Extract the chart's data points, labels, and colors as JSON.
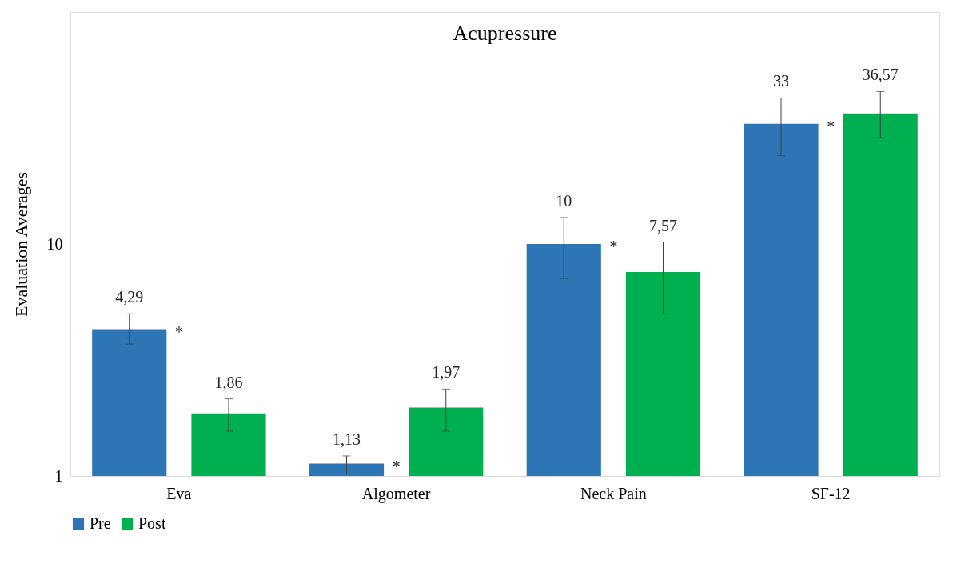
{
  "chart_data": {
    "type": "bar",
    "title": "Acupressure",
    "ylabel": "Evaluation Averages",
    "categories": [
      "Eva",
      "Algometer",
      "Neck Pain",
      "SF-12"
    ],
    "series": [
      {
        "name": "Pre",
        "color": "#2e75b6",
        "values": [
          4.29,
          1.13,
          10,
          33
        ],
        "value_labels": [
          "4,29",
          "1,13",
          "10",
          "33"
        ],
        "errors": [
          [
            3.7,
            5.0
          ],
          [
            1.02,
            1.22
          ],
          [
            7.1,
            13.0
          ],
          [
            24.0,
            42.6
          ]
        ]
      },
      {
        "name": "Post",
        "color": "#00b050",
        "values": [
          1.86,
          1.97,
          7.57,
          36.57
        ],
        "value_labels": [
          "1,86",
          "1,97",
          "7,57",
          "36,57"
        ],
        "errors": [
          [
            1.56,
            2.15
          ],
          [
            1.56,
            2.37
          ],
          [
            5.0,
            10.2
          ],
          [
            28.7,
            45.4
          ]
        ]
      }
    ],
    "annotations": [
      "*",
      "*",
      "*",
      "*"
    ],
    "log": "y",
    "ylim": [
      1,
      100
    ],
    "yticks": [
      1,
      10
    ],
    "grid": false,
    "legend": "bottom"
  }
}
